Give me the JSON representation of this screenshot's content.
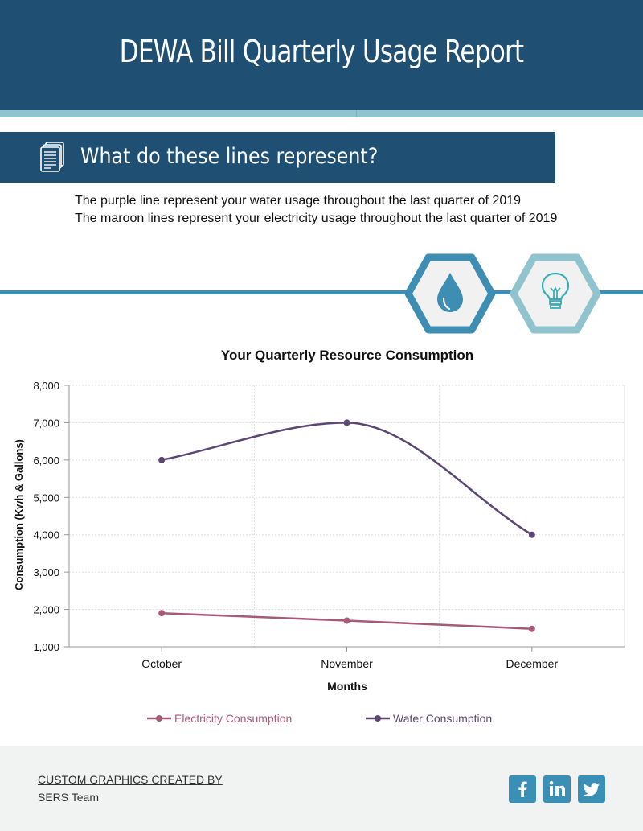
{
  "header": {
    "title": "DEWA Bill Quarterly Usage Report"
  },
  "section": {
    "title": "What do these lines represent?",
    "icon": "document-icon"
  },
  "description": {
    "line1": "The purple line represent your water usage throughout the last quarter of 2019",
    "line2": "The maroon lines represent your electricity usage throughout the last quarter of 2019"
  },
  "icons": {
    "water": "water-drop-icon",
    "electricity": "lightbulb-icon"
  },
  "colors": {
    "header": "#1f5074",
    "electricity": "#a75a78",
    "water": "#5c4673",
    "accent": "#3d8eb2"
  },
  "chart_data": {
    "type": "line",
    "title": "Your Quarterly Resource Consumption",
    "xlabel": "Months",
    "ylabel": "Consumption (Kwh & Gallons)",
    "categories": [
      "October",
      "November",
      "December"
    ],
    "ylim": [
      1000,
      8000
    ],
    "yticks": [
      "1,000",
      "2,000",
      "3,000",
      "4,000",
      "5,000",
      "6,000",
      "7,000",
      "8,000"
    ],
    "series": [
      {
        "name": "Electricity Consumption",
        "values": [
          1900,
          1700,
          1480
        ],
        "color": "#a75a78"
      },
      {
        "name": "Water Consumption",
        "values": [
          6000,
          7000,
          4000
        ],
        "color": "#5c4673"
      }
    ],
    "grid": true,
    "legend": "bottom"
  },
  "footer": {
    "credit_label": "CUSTOM GRAPHICS CREATED BY",
    "credit_name": "SERS Team",
    "social": [
      "facebook-icon",
      "linkedin-icon",
      "twitter-icon"
    ]
  }
}
